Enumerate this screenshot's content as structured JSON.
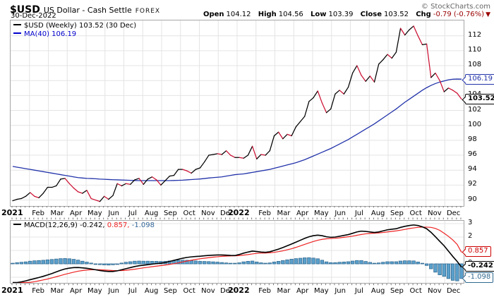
{
  "header": {
    "symbol": "$USD",
    "title": "US Dollar - Cash Settle",
    "exchange": "FOREX",
    "date": "30-Dec-2022",
    "copyright": "© StockCharts.com",
    "quote": {
      "open_label": "Open",
      "open": "104.12",
      "high_label": "High",
      "high": "104.56",
      "low_label": "Low",
      "low": "103.39",
      "close_label": "Close",
      "close": "103.52",
      "chg_label": "Chg",
      "chg": "-0.79 (-0.76%)",
      "chg_arrow": "▼",
      "chg_direction": "down"
    }
  },
  "price_panel": {
    "legend_price": "$USD (Weekly) 103.52 (30 Dec)",
    "legend_ma": "MA(40) 106.19",
    "price_box_label": "103.52",
    "ma_box_label": "106.19"
  },
  "macd_panel": {
    "legend_name": "MACD(12,26,9)",
    "legend_macd_value": "-0.242,",
    "legend_signal_value": "0.857,",
    "legend_hist_value": "-1.098",
    "signal_box_label": "0.857",
    "macd_box_label": "-0.242",
    "hist_box_label": "-1.098"
  },
  "colors": {
    "priceup": "#000000",
    "pricedown": "#cc1133",
    "ma": "#2233aa",
    "legendma": "#0000cc",
    "macdline": "#000000",
    "signal": "#ee2222",
    "boxred": "#cc0000",
    "histfill": "#5ba0cc",
    "histstroke": "#31698f",
    "histlabel": "#336699",
    "zeroline": "#7799bb",
    "grid": "#e4e4e4",
    "tick": "#777777",
    "chg": "#990000"
  },
  "chart_data": [
    {
      "panel": "price",
      "type": "line",
      "timeframe": "weekly",
      "title": "$USD US Dollar - Cash Settle FOREX (Weekly)",
      "x_months": [
        "2021",
        "Feb",
        "Mar",
        "Apr",
        "May",
        "Jun",
        "Jul",
        "Aug",
        "Sep",
        "Oct",
        "Nov",
        "Dec",
        "2022",
        "Feb",
        "Mar",
        "Apr",
        "May",
        "Jun",
        "Jul",
        "Aug",
        "Sep",
        "Oct",
        "Nov",
        "Dec"
      ],
      "ylim": [
        89.2,
        114.05
      ],
      "yticks": [
        90,
        92,
        94,
        96,
        98,
        100,
        102,
        104,
        106,
        108,
        110,
        112
      ],
      "grid": true,
      "legend_position": "top-left",
      "series": [
        {
          "name": "$USD close",
          "style": "two-tone-updown",
          "values": [
            89.9,
            90.1,
            90.2,
            90.5,
            91.0,
            90.5,
            90.3,
            90.9,
            91.7,
            91.7,
            91.9,
            92.8,
            92.9,
            92.2,
            91.6,
            91.1,
            90.9,
            91.3,
            90.2,
            90.0,
            89.8,
            90.5,
            90.1,
            90.6,
            92.2,
            91.9,
            92.2,
            92.1,
            92.7,
            92.9,
            92.1,
            92.8,
            93.1,
            92.7,
            92.0,
            92.6,
            93.2,
            93.3,
            94.1,
            94.1,
            93.9,
            93.6,
            94.1,
            94.3,
            95.1,
            96.0,
            96.1,
            96.2,
            96.1,
            96.6,
            96.0,
            95.7,
            95.7,
            95.6,
            96.0,
            97.2,
            95.5,
            96.1,
            96.0,
            96.6,
            98.6,
            99.1,
            98.2,
            98.8,
            98.6,
            99.8,
            100.5,
            101.2,
            103.2,
            103.7,
            104.6,
            103.0,
            101.7,
            102.2,
            104.2,
            104.7,
            104.2,
            105.1,
            107.0,
            108.0,
            106.7,
            105.9,
            106.6,
            105.8,
            108.2,
            108.8,
            109.5,
            109.0,
            109.8,
            113.0,
            112.1,
            112.8,
            113.3,
            112.0,
            110.8,
            110.9,
            106.4,
            107.0,
            106.0,
            104.5,
            105.0,
            104.7,
            104.3,
            103.52
          ]
        },
        {
          "name": "MA(40)",
          "style": "ma",
          "values": [
            94.5,
            94.4,
            94.3,
            94.2,
            94.1,
            94.0,
            93.9,
            93.8,
            93.7,
            93.6,
            93.5,
            93.4,
            93.3,
            93.2,
            93.1,
            93.0,
            92.95,
            92.9,
            92.88,
            92.85,
            92.8,
            92.78,
            92.75,
            92.72,
            92.7,
            92.68,
            92.66,
            92.64,
            92.62,
            92.6,
            92.6,
            92.6,
            92.6,
            92.6,
            92.6,
            92.6,
            92.6,
            92.62,
            92.64,
            92.66,
            92.7,
            92.74,
            92.78,
            92.82,
            92.88,
            92.95,
            93.0,
            93.05,
            93.1,
            93.2,
            93.3,
            93.4,
            93.45,
            93.5,
            93.6,
            93.7,
            93.8,
            93.9,
            94.0,
            94.1,
            94.25,
            94.4,
            94.55,
            94.7,
            94.85,
            95.0,
            95.2,
            95.4,
            95.65,
            95.9,
            96.15,
            96.4,
            96.65,
            96.9,
            97.2,
            97.5,
            97.8,
            98.1,
            98.45,
            98.8,
            99.15,
            99.5,
            99.85,
            100.2,
            100.6,
            101.0,
            101.4,
            101.8,
            102.2,
            102.65,
            103.1,
            103.5,
            103.9,
            104.3,
            104.7,
            105.05,
            105.35,
            105.6,
            105.8,
            105.95,
            106.1,
            106.18,
            106.2,
            106.19
          ]
        }
      ],
      "last_values": {
        "price": 103.52,
        "ma40": 106.19
      }
    },
    {
      "panel": "macd",
      "type": "line+histogram",
      "title": "MACD(12,26,9)",
      "ylim": [
        -1.42,
        3.21
      ],
      "yticks": [
        3,
        2,
        1,
        0,
        -1
      ],
      "zero_line": "dashed",
      "histogram_rule": "macd_minus_signal",
      "series": [
        {
          "name": "MACD",
          "style": "macd",
          "values": [
            -1.45,
            -1.4,
            -1.34,
            -1.27,
            -1.18,
            -1.1,
            -1.02,
            -0.93,
            -0.83,
            -0.72,
            -0.6,
            -0.48,
            -0.38,
            -0.32,
            -0.28,
            -0.27,
            -0.3,
            -0.33,
            -0.38,
            -0.44,
            -0.5,
            -0.54,
            -0.57,
            -0.57,
            -0.52,
            -0.44,
            -0.36,
            -0.28,
            -0.2,
            -0.14,
            -0.1,
            -0.06,
            -0.02,
            0.02,
            0.05,
            0.1,
            0.18,
            0.26,
            0.34,
            0.42,
            0.48,
            0.52,
            0.55,
            0.57,
            0.6,
            0.63,
            0.65,
            0.66,
            0.66,
            0.65,
            0.63,
            0.62,
            0.7,
            0.8,
            0.88,
            0.95,
            0.92,
            0.88,
            0.86,
            0.9,
            1.0,
            1.1,
            1.22,
            1.35,
            1.48,
            1.62,
            1.76,
            1.9,
            2.02,
            2.1,
            2.14,
            2.1,
            2.02,
            1.98,
            2.0,
            2.06,
            2.12,
            2.18,
            2.28,
            2.38,
            2.44,
            2.42,
            2.38,
            2.34,
            2.38,
            2.46,
            2.54,
            2.58,
            2.62,
            2.72,
            2.8,
            2.86,
            2.9,
            2.86,
            2.76,
            2.62,
            2.35,
            2.02,
            1.68,
            1.35,
            0.95,
            0.55,
            0.18,
            -0.242
          ]
        },
        {
          "name": "Signal",
          "style": "signal",
          "values": [
            -1.5,
            -1.49,
            -1.46,
            -1.42,
            -1.38,
            -1.33,
            -1.27,
            -1.2,
            -1.13,
            -1.05,
            -0.96,
            -0.87,
            -0.78,
            -0.7,
            -0.62,
            -0.55,
            -0.5,
            -0.46,
            -0.44,
            -0.43,
            -0.44,
            -0.46,
            -0.48,
            -0.5,
            -0.51,
            -0.5,
            -0.48,
            -0.44,
            -0.4,
            -0.35,
            -0.3,
            -0.26,
            -0.21,
            -0.17,
            -0.13,
            -0.09,
            -0.04,
            0.01,
            0.07,
            0.14,
            0.21,
            0.27,
            0.33,
            0.38,
            0.42,
            0.46,
            0.5,
            0.53,
            0.56,
            0.58,
            0.59,
            0.6,
            0.62,
            0.65,
            0.69,
            0.74,
            0.78,
            0.8,
            0.81,
            0.83,
            0.86,
            0.91,
            0.97,
            1.05,
            1.13,
            1.23,
            1.34,
            1.45,
            1.56,
            1.67,
            1.76,
            1.83,
            1.87,
            1.89,
            1.91,
            1.94,
            1.98,
            2.02,
            2.07,
            2.13,
            2.19,
            2.24,
            2.27,
            2.29,
            2.31,
            2.34,
            2.38,
            2.42,
            2.46,
            2.51,
            2.57,
            2.63,
            2.68,
            2.72,
            2.74,
            2.74,
            2.72,
            2.64,
            2.5,
            2.28,
            2.05,
            1.78,
            1.45,
            0.857
          ]
        }
      ],
      "last_values": {
        "macd": -0.242,
        "signal": 0.857,
        "histogram": -1.098
      }
    }
  ]
}
